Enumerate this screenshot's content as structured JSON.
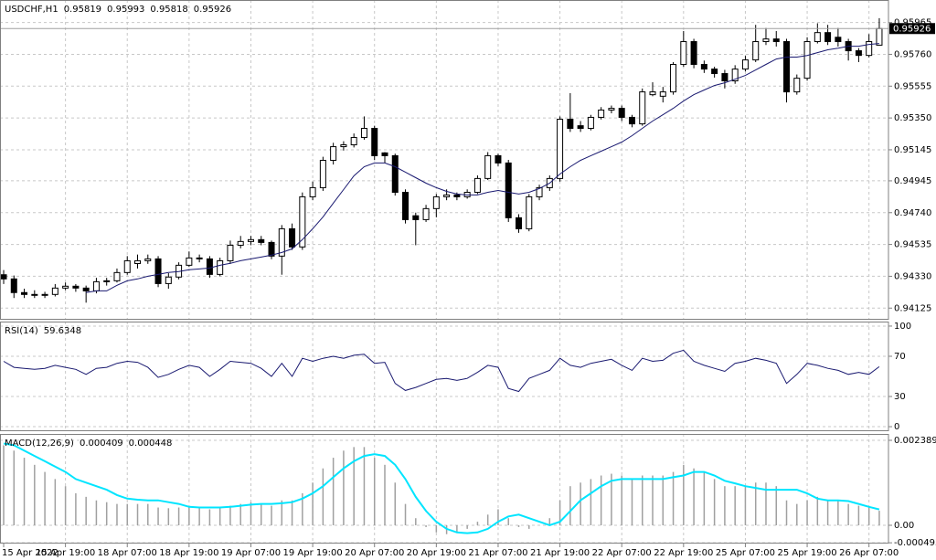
{
  "chart_data": [
    {
      "type": "candlestick",
      "title": "USDCHF,H1",
      "header_values": [
        0.95819,
        0.95993,
        0.95818,
        0.95926
      ],
      "last_price": 0.95926,
      "up_color": "#ffffff",
      "down_color": "#000000",
      "ylim": [
        0.9405,
        0.9611
      ],
      "yticks": [
        0.95965,
        {
          "value": 0.9576,
          "label": "0.95760"
        },
        0.95555,
        {
          "value": 0.9535,
          "label": "0.95350"
        },
        0.95145,
        0.94945,
        {
          "value": 0.9474,
          "label": "0.94740"
        },
        0.94535,
        {
          "value": 0.9433,
          "label": "0.94330"
        },
        0.94125
      ],
      "candles": [
        [
          0.9434,
          0.9437,
          0.9428,
          0.94313
        ],
        [
          0.94313,
          0.94335,
          0.9419,
          0.94225
        ],
        [
          0.94225,
          0.9425,
          0.9419,
          0.94213
        ],
        [
          0.94213,
          0.9424,
          0.9419,
          0.94207
        ],
        [
          0.94207,
          0.9423,
          0.9419,
          0.94213
        ],
        [
          0.94213,
          0.9428,
          0.942,
          0.94254
        ],
        [
          0.94254,
          0.9429,
          0.9424,
          0.94266
        ],
        [
          0.94266,
          0.9428,
          0.9423,
          0.94254
        ],
        [
          0.94254,
          0.9427,
          0.9416,
          0.94236
        ],
        [
          0.94236,
          0.9432,
          0.9422,
          0.94295
        ],
        [
          0.94295,
          0.9432,
          0.9427,
          0.94301
        ],
        [
          0.94301,
          0.9438,
          0.9429,
          0.94354
        ],
        [
          0.94354,
          0.9446,
          0.9434,
          0.9443
        ],
        [
          0.94412,
          0.9447,
          0.9438,
          0.9443
        ],
        [
          0.9443,
          0.9447,
          0.9441,
          0.94442
        ],
        [
          0.94442,
          0.9446,
          0.9426,
          0.94283
        ],
        [
          0.94283,
          0.9435,
          0.9425,
          0.94325
        ],
        [
          0.94325,
          0.9442,
          0.9431,
          0.94401
        ],
        [
          0.94401,
          0.9449,
          0.9439,
          0.94448
        ],
        [
          0.94448,
          0.9447,
          0.9442,
          0.94442
        ],
        [
          0.94442,
          0.9446,
          0.9432,
          0.94342
        ],
        [
          0.94342,
          0.9445,
          0.9433,
          0.9443
        ],
        [
          0.9443,
          0.9456,
          0.9441,
          0.9453
        ],
        [
          0.9453,
          0.9459,
          0.9451,
          0.94554
        ],
        [
          0.94554,
          0.9459,
          0.9453,
          0.94566
        ],
        [
          0.94566,
          0.9459,
          0.9453,
          0.94548
        ],
        [
          0.94548,
          0.9456,
          0.9444,
          0.9446
        ],
        [
          0.9446,
          0.9466,
          0.9434,
          0.94636
        ],
        [
          0.94636,
          0.9467,
          0.945,
          0.94519
        ],
        [
          0.94519,
          0.9487,
          0.945,
          0.94842
        ],
        [
          0.94842,
          0.9494,
          0.9482,
          0.94901
        ],
        [
          0.94901,
          0.951,
          0.9488,
          0.95077
        ],
        [
          0.95077,
          0.9519,
          0.9505,
          0.95165
        ],
        [
          0.95165,
          0.952,
          0.9514,
          0.95177
        ],
        [
          0.95177,
          0.9525,
          0.9516,
          0.95224
        ],
        [
          0.95224,
          0.9536,
          0.9521,
          0.95283
        ],
        [
          0.95283,
          0.953,
          0.9508,
          0.95107
        ],
        [
          0.95125,
          0.9513,
          0.9506,
          0.95107
        ],
        [
          0.95107,
          0.9512,
          0.9485,
          0.94871
        ],
        [
          0.94871,
          0.9489,
          0.9467,
          0.94695
        ],
        [
          0.9472,
          0.9474,
          0.9453,
          0.94695
        ],
        [
          0.94695,
          0.9479,
          0.9468,
          0.94766
        ],
        [
          0.94766,
          0.9486,
          0.9471,
          0.94842
        ],
        [
          0.94842,
          0.9489,
          0.9482,
          0.94854
        ],
        [
          0.94854,
          0.9487,
          0.9482,
          0.94842
        ],
        [
          0.94842,
          0.9489,
          0.9483,
          0.94871
        ],
        [
          0.94871,
          0.9498,
          0.9486,
          0.9496
        ],
        [
          0.9496,
          0.9513,
          0.9495,
          0.95107
        ],
        [
          0.95107,
          0.9512,
          0.9504,
          0.9506
        ],
        [
          0.9506,
          0.9508,
          0.9468,
          0.94707
        ],
        [
          0.94707,
          0.9473,
          0.9461,
          0.94636
        ],
        [
          0.94636,
          0.9486,
          0.9462,
          0.94842
        ],
        [
          0.94842,
          0.9492,
          0.9482,
          0.94901
        ],
        [
          0.94901,
          0.9498,
          0.9488,
          0.9496
        ],
        [
          0.9496,
          0.9536,
          0.9494,
          0.95342
        ],
        [
          0.95342,
          0.9551,
          0.9526,
          0.95283
        ],
        [
          0.953,
          0.9533,
          0.9526,
          0.95283
        ],
        [
          0.95283,
          0.9537,
          0.9527,
          0.95354
        ],
        [
          0.95354,
          0.9542,
          0.9534,
          0.95401
        ],
        [
          0.95401,
          0.9543,
          0.9538,
          0.95412
        ],
        [
          0.95412,
          0.9543,
          0.9533,
          0.95354
        ],
        [
          0.95354,
          0.9537,
          0.9529,
          0.95312
        ],
        [
          0.95312,
          0.9554,
          0.953,
          0.95518
        ],
        [
          0.955,
          0.9558,
          0.9549,
          0.95518
        ],
        [
          0.9549,
          0.9555,
          0.9545,
          0.95518
        ],
        [
          0.95518,
          0.9571,
          0.955,
          0.95695
        ],
        [
          0.95695,
          0.9591,
          0.9568,
          0.95842
        ],
        [
          0.95842,
          0.9586,
          0.9567,
          0.95695
        ],
        [
          0.95695,
          0.9572,
          0.9564,
          0.95665
        ],
        [
          0.95665,
          0.9568,
          0.9561,
          0.95636
        ],
        [
          0.95636,
          0.9566,
          0.9554,
          0.95589
        ],
        [
          0.95589,
          0.9569,
          0.9557,
          0.95665
        ],
        [
          0.95665,
          0.9575,
          0.9565,
          0.95724
        ],
        [
          0.95724,
          0.9595,
          0.9571,
          0.95842
        ],
        [
          0.95842,
          0.9593,
          0.9582,
          0.95859
        ],
        [
          0.95859,
          0.9591,
          0.9581,
          0.95842
        ],
        [
          0.95842,
          0.9586,
          0.9545,
          0.95518
        ],
        [
          0.95518,
          0.9563,
          0.955,
          0.95606
        ],
        [
          0.95606,
          0.9587,
          0.9559,
          0.95842
        ],
        [
          0.95842,
          0.9596,
          0.9583,
          0.959
        ],
        [
          0.959,
          0.9595,
          0.9582,
          0.95842
        ],
        [
          0.9587,
          0.9593,
          0.9581,
          0.95842
        ],
        [
          0.95842,
          0.9586,
          0.9572,
          0.95783
        ],
        [
          0.95783,
          0.958,
          0.9571,
          0.95753
        ],
        [
          0.95753,
          0.9589,
          0.9574,
          0.95842
        ],
        [
          0.95819,
          0.95993,
          0.95818,
          0.95926
        ]
      ],
      "ma": {
        "color": "#191970",
        "values": [
          null,
          null,
          null,
          null,
          null,
          null,
          null,
          null,
          0.94225,
          0.94236,
          0.94236,
          0.94272,
          0.94301,
          0.94313,
          0.9433,
          0.94342,
          0.94354,
          0.9436,
          0.94372,
          0.94377,
          0.94383,
          0.94401,
          0.94413,
          0.9443,
          0.94442,
          0.94454,
          0.94466,
          0.94483,
          0.94507,
          0.94566,
          0.94636,
          0.94713,
          0.94801,
          0.94889,
          0.94977,
          0.95036,
          0.9506,
          0.9506,
          0.95036,
          0.95001,
          0.94965,
          0.9493,
          0.94901,
          0.94877,
          0.9486,
          0.94854,
          0.94854,
          0.94871,
          0.94883,
          0.94871,
          0.9486,
          0.94871,
          0.94895,
          0.9493,
          0.94989,
          0.95036,
          0.95077,
          0.95107,
          0.95136,
          0.95165,
          0.95195,
          0.95236,
          0.95283,
          0.9533,
          0.95371,
          0.95412,
          0.95459,
          0.955,
          0.9553,
          0.95559,
          0.95577,
          0.956,
          0.95624,
          0.95659,
          0.95695,
          0.9573,
          0.95742,
          0.95742,
          0.95753,
          0.95771,
          0.95789,
          0.958,
          0.95812,
          0.95812,
          0.95824,
          0.9583
        ]
      }
    },
    {
      "type": "line",
      "title": "RSI(14)",
      "header_values": [
        59.6348
      ],
      "ylim": [
        -4.5,
        104.5
      ],
      "yticks": [
        100,
        70,
        30,
        0
      ],
      "series": [
        {
          "color": "#191970",
          "values": [
            65,
            59,
            58,
            57,
            58,
            61,
            59,
            57,
            52,
            58,
            59,
            63,
            65,
            64,
            59,
            49,
            52,
            57,
            61,
            59,
            50,
            57,
            65,
            64,
            63,
            58,
            50,
            63,
            50,
            68,
            65,
            68,
            70,
            68,
            71,
            72,
            63,
            64,
            43,
            36,
            39,
            43,
            47,
            48,
            46,
            48,
            54,
            61,
            59,
            38,
            35,
            48,
            52,
            56,
            68,
            61,
            59,
            63,
            65,
            67,
            61,
            56,
            68,
            65,
            66,
            73,
            76,
            65,
            61,
            58,
            55,
            63,
            65,
            68,
            66,
            63,
            43,
            52,
            63,
            61,
            58,
            56,
            52,
            54,
            52,
            59.6348
          ]
        }
      ]
    },
    {
      "type": "macd",
      "title": "MACD(12,26,9)",
      "header_values": [
        0.000409,
        0.000448
      ],
      "ylim": [
        -0.000514,
        0.002569
      ],
      "yticks": [
        0.002389,
        {
          "value": 0,
          "label": "0.00"
        },
        -0.000493
      ],
      "categories": [
        "15 Apr 2022",
        null,
        null,
        null,
        null,
        null,
        "15 Apr 19:00",
        null,
        null,
        null,
        null,
        null,
        "18 Apr 07:00",
        null,
        null,
        null,
        null,
        null,
        "18 Apr 19:00",
        null,
        null,
        null,
        null,
        null,
        "19 Apr 07:00",
        null,
        null,
        null,
        null,
        null,
        "19 Apr 19:00",
        null,
        null,
        null,
        null,
        null,
        "20 Apr 07:00",
        null,
        null,
        null,
        null,
        null,
        "20 Apr 19:00",
        null,
        null,
        null,
        null,
        null,
        "21 Apr 07:00",
        null,
        null,
        null,
        null,
        null,
        "21 Apr 19:00",
        null,
        null,
        null,
        null,
        null,
        "22 Apr 07:00",
        null,
        null,
        null,
        null,
        null,
        "22 Apr 19:00",
        null,
        null,
        null,
        null,
        null,
        "25 Apr 07:00",
        null,
        null,
        null,
        null,
        null,
        "25 Apr 19:00",
        null,
        null,
        null,
        null,
        null,
        "26 Apr 07:00",
        null
      ],
      "histogram": {
        "color": "#a0a0a0",
        "values": [
          0.00225,
          0.0021,
          0.0019,
          0.0017,
          0.0015,
          0.0013,
          0.0011,
          0.0009,
          0.0008,
          0.0007,
          0.00065,
          0.0006,
          0.0006,
          0.0006,
          0.0006,
          0.0005,
          0.00048,
          0.0005,
          0.0005,
          0.00048,
          0.00045,
          0.00048,
          0.00055,
          0.0006,
          0.00065,
          0.0006,
          0.00055,
          0.0007,
          0.0007,
          0.0009,
          0.0012,
          0.0016,
          0.0019,
          0.0021,
          0.0022,
          0.0022,
          0.0019,
          0.0017,
          0.0012,
          0.0006,
          0.0002,
          -5e-05,
          -0.0002,
          -0.00025,
          -0.0002,
          -0.0001,
          0.0001,
          0.0003,
          0.00045,
          0.0002,
          -5e-05,
          -0.0001,
          0,
          0.0002,
          0.0007,
          0.0011,
          0.0012,
          0.0013,
          0.0014,
          0.00145,
          0.0014,
          0.0013,
          0.0014,
          0.0014,
          0.0014,
          0.0015,
          0.0017,
          0.0016,
          0.0015,
          0.0013,
          0.0011,
          0.0011,
          0.0011,
          0.0012,
          0.0012,
          0.0011,
          0.0007,
          0.0006,
          0.0007,
          0.0008,
          0.0007,
          0.0007,
          0.0006,
          0.00055,
          0.0005,
          0.000409
        ]
      },
      "signal": {
        "color": "#00e5ff",
        "values": [
          0.0023,
          0.00225,
          0.0021,
          0.00195,
          0.0018,
          0.00165,
          0.0015,
          0.0013,
          0.0012,
          0.0011,
          0.001,
          0.00085,
          0.00075,
          0.00072,
          0.0007,
          0.0007,
          0.00065,
          0.0006,
          0.00052,
          0.0005,
          0.0005,
          0.0005,
          0.00052,
          0.00055,
          0.00058,
          0.0006,
          0.0006,
          0.00062,
          0.00065,
          0.00075,
          0.0009,
          0.0011,
          0.00135,
          0.0016,
          0.0018,
          0.00195,
          0.002,
          0.00195,
          0.0017,
          0.0013,
          0.0008,
          0.0004,
          0.0001,
          -0.0001,
          -0.0002,
          -0.00022,
          -0.0002,
          -0.0001,
          0.0001,
          0.00025,
          0.0003,
          0.0002,
          0.0001,
          0,
          0.0001,
          0.0004,
          0.0007,
          0.0009,
          0.0011,
          0.00125,
          0.0013,
          0.0013,
          0.0013,
          0.0013,
          0.0013,
          0.00135,
          0.0014,
          0.0015,
          0.0015,
          0.0014,
          0.00125,
          0.00118,
          0.0011,
          0.00105,
          0.001,
          0.001,
          0.001,
          0.001,
          0.0009,
          0.00075,
          0.0007,
          0.0007,
          0.00068,
          0.0006,
          0.00052,
          0.000448
        ]
      }
    }
  ]
}
